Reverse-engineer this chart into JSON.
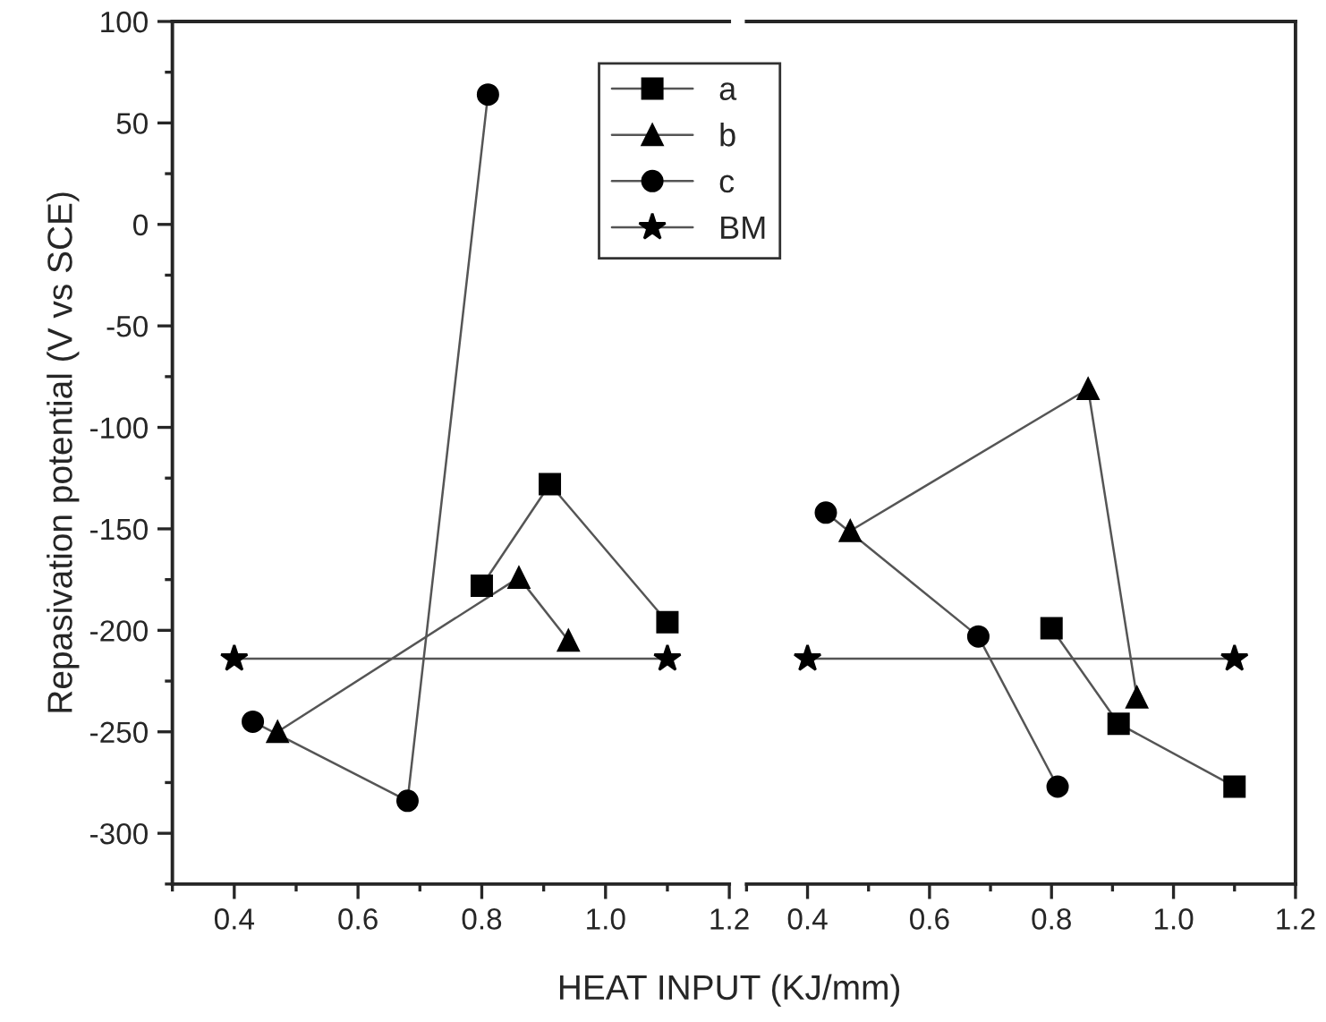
{
  "chart_data": [
    {
      "type": "line",
      "ylabel": "Repasivation potential (V vs SCE)",
      "xlabel": "HEAT INPUT (KJ/mm)",
      "xlim": [
        0.3,
        1.2
      ],
      "xticks": [
        {
          "value": 0.4,
          "label": "0.4"
        },
        {
          "value": 0.6,
          "label": "0.6"
        },
        {
          "value": 0.8,
          "label": "0.8"
        },
        {
          "value": 1.0,
          "label": "1.0"
        },
        {
          "value": 1.2,
          "label": "1.2"
        }
      ],
      "ylim": [
        -325,
        100
      ],
      "yticks": [
        -300,
        -250,
        -200,
        -150,
        -100,
        -50,
        0,
        50,
        100
      ],
      "grid": false,
      "legend": "top right",
      "line_style": "solid",
      "series": [
        {
          "name": "a",
          "color": "#000000",
          "marker": "square",
          "x": [
            0.8,
            0.91,
            1.1
          ],
          "values": [
            -178,
            -128,
            -196
          ]
        },
        {
          "name": "b",
          "color": "#000000",
          "marker": "triangle",
          "x": [
            0.47,
            0.86,
            0.94
          ],
          "values": [
            -250,
            -174,
            -205
          ]
        },
        {
          "name": "c",
          "color": "#000000",
          "marker": "circle",
          "x": [
            0.43,
            0.68,
            0.81
          ],
          "values": [
            -245,
            -284,
            64
          ]
        },
        {
          "name": "BM",
          "color": "#000000",
          "marker": "star",
          "x": [
            0.4,
            1.1
          ],
          "values": [
            -214,
            -214
          ]
        }
      ]
    },
    {
      "type": "line",
      "xlim": [
        0.3,
        1.2
      ],
      "xticks": [
        {
          "value": 0.4,
          "label": "0.4"
        },
        {
          "value": 0.6,
          "label": "0.6"
        },
        {
          "value": 0.8,
          "label": "0.8"
        },
        {
          "value": 1.0,
          "label": "1.0"
        },
        {
          "value": 1.2,
          "label": "1.2"
        }
      ],
      "ylim": [
        -325,
        100
      ],
      "tick_labels": "x",
      "grid": false,
      "legend": false,
      "line_style": "solid",
      "series": [
        {
          "color": "#000000",
          "marker": "square",
          "x": [
            0.8,
            0.91,
            1.1
          ],
          "values": [
            -199,
            -246,
            -277
          ]
        },
        {
          "color": "#000000",
          "marker": "triangle",
          "x": [
            0.47,
            0.86,
            0.94
          ],
          "values": [
            -151,
            -81,
            -233
          ]
        },
        {
          "color": "#000000",
          "marker": "circle",
          "x": [
            0.43,
            0.68,
            0.81
          ],
          "values": [
            -142,
            -203,
            -277
          ]
        },
        {
          "color": "#000000",
          "marker": "star",
          "x": [
            0.4,
            1.1
          ],
          "values": [
            -214,
            -214
          ]
        }
      ]
    }
  ]
}
